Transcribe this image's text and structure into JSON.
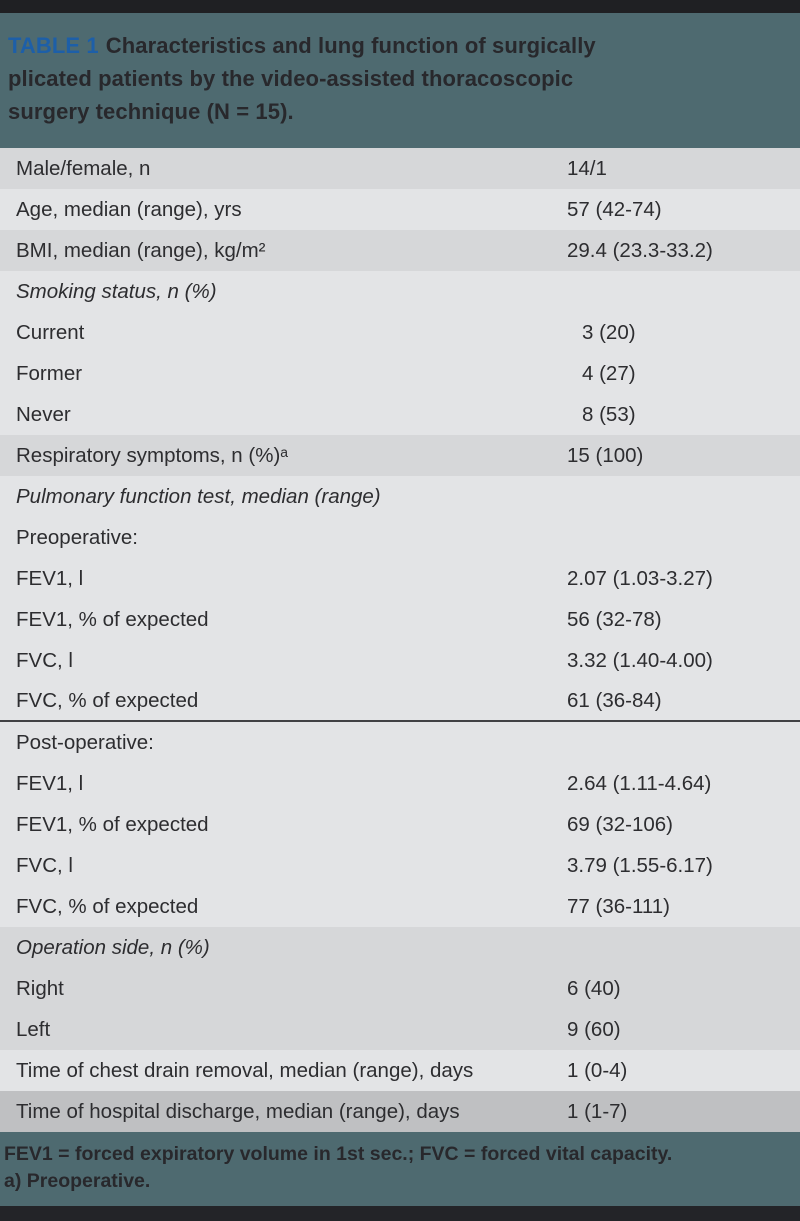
{
  "header": {
    "label": "TABLE 1",
    "title_line1": "Characteristics and lung function of surgically",
    "title_line2": "plicated patients by the video-assisted thoracoscopic",
    "title_line3": "surgery technique (N = 15)."
  },
  "table": {
    "rows": [
      {
        "label": "Male/female, n",
        "value": "14/1",
        "shade": "dark",
        "italic": false,
        "indent_value": false,
        "divider_after": false
      },
      {
        "label": "Age, median (range), yrs",
        "value": "57 (42-74)",
        "shade": "light",
        "italic": false,
        "indent_value": false,
        "divider_after": false
      },
      {
        "label": "BMI, median (range), kg/m²",
        "value": "29.4 (23.3-33.2)",
        "shade": "dark",
        "italic": false,
        "indent_value": false,
        "divider_after": false
      },
      {
        "label": "Smoking status, n (%)",
        "value": "",
        "shade": "light",
        "italic": true,
        "indent_value": false,
        "divider_after": false
      },
      {
        "label": "Current",
        "value": "3 (20)",
        "shade": "light",
        "italic": false,
        "indent_value": true,
        "divider_after": false
      },
      {
        "label": "Former",
        "value": "4 (27)",
        "shade": "light",
        "italic": false,
        "indent_value": true,
        "divider_after": false
      },
      {
        "label": "Never",
        "value": "8 (53)",
        "shade": "light",
        "italic": false,
        "indent_value": true,
        "divider_after": false
      },
      {
        "label": "Respiratory symptoms, n (%)ᵃ",
        "value": "15 (100)",
        "shade": "dark",
        "italic": false,
        "indent_value": false,
        "divider_after": false
      },
      {
        "label": "Pulmonary function test, median (range)",
        "value": "",
        "shade": "light",
        "italic": true,
        "indent_value": false,
        "divider_after": false
      },
      {
        "label": "Preoperative:",
        "value": "",
        "shade": "light",
        "italic": false,
        "indent_value": false,
        "divider_after": false
      },
      {
        "label": "FEV1, l",
        "value": "2.07 (1.03-3.27)",
        "shade": "light",
        "italic": false,
        "indent_value": false,
        "divider_after": false
      },
      {
        "label": "FEV1, % of expected",
        "value": "56 (32-78)",
        "shade": "light",
        "italic": false,
        "indent_value": false,
        "divider_after": false
      },
      {
        "label": "FVC, l",
        "value": "3.32 (1.40-4.00)",
        "shade": "light",
        "italic": false,
        "indent_value": false,
        "divider_after": false
      },
      {
        "label": "FVC, % of expected",
        "value": "61 (36-84)",
        "shade": "light",
        "italic": false,
        "indent_value": false,
        "divider_after": true
      },
      {
        "label": "Post-operative:",
        "value": "",
        "shade": "light",
        "italic": false,
        "indent_value": false,
        "divider_after": false
      },
      {
        "label": "FEV1, l",
        "value": "2.64 (1.11-4.64)",
        "shade": "light",
        "italic": false,
        "indent_value": false,
        "divider_after": false
      },
      {
        "label": "FEV1, % of expected",
        "value": "69 (32-106)",
        "shade": "light",
        "italic": false,
        "indent_value": false,
        "divider_after": false
      },
      {
        "label": "FVC, l",
        "value": "3.79 (1.55-6.17)",
        "shade": "light",
        "italic": false,
        "indent_value": false,
        "divider_after": false
      },
      {
        "label": "FVC, % of expected",
        "value": "77 (36-111)",
        "shade": "light",
        "italic": false,
        "indent_value": false,
        "divider_after": false
      },
      {
        "label": "Operation side, n (%)",
        "value": "",
        "shade": "dark",
        "italic": true,
        "indent_value": false,
        "divider_after": false
      },
      {
        "label": "Right",
        "value": "6 (40)",
        "shade": "dark",
        "italic": false,
        "indent_value": false,
        "divider_after": false
      },
      {
        "label": "Left",
        "value": "9 (60)",
        "shade": "dark",
        "italic": false,
        "indent_value": false,
        "divider_after": false
      },
      {
        "label": "Time of chest drain removal, median (range), days",
        "value": "1 (0-4)",
        "shade": "light",
        "italic": false,
        "indent_value": false,
        "divider_after": false
      },
      {
        "label": "Time of hospital discharge, median (range), days",
        "value": "1 (1-7)",
        "shade": "darker",
        "italic": false,
        "indent_value": false,
        "divider_after": false
      }
    ]
  },
  "footer": {
    "line1": "FEV1 = forced expiratory volume in 1st sec.; FVC = forced vital capacity.",
    "line2": "a) Preoperative."
  },
  "colors": {
    "teal_background": "#4e6a70",
    "table_label_blue": "#1d5fa8",
    "row_dark": "#d6d7d9",
    "row_light": "#e3e4e6",
    "row_last_darker": "#bfc0c2",
    "text_dark": "#2d2d30",
    "bar_black": "#1f2023"
  }
}
